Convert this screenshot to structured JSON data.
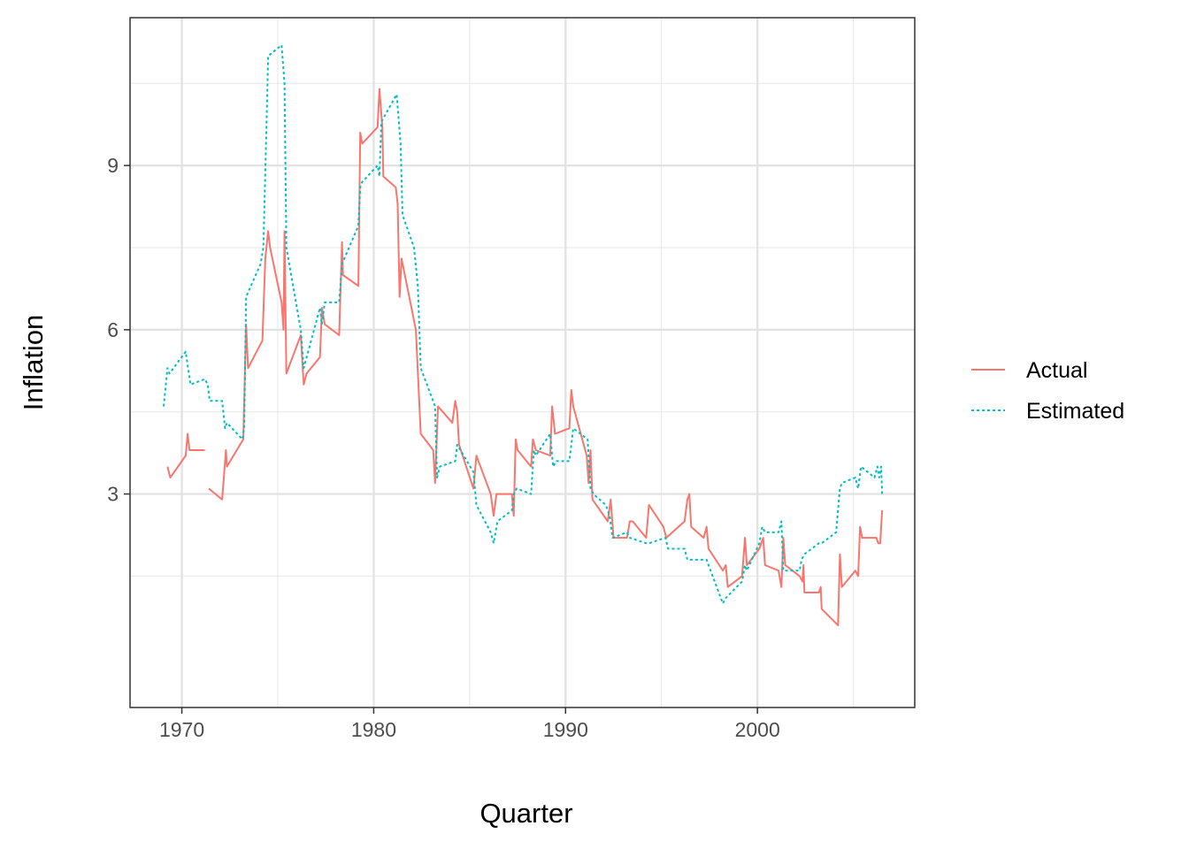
{
  "chart_data": {
    "type": "line",
    "title": "",
    "xlabel": "Quarter",
    "ylabel": "Inflation",
    "xlim": [
      1967.3,
      2008.2
    ],
    "ylim": [
      -0.9,
      11.7
    ],
    "x_ticks": [
      1970,
      1980,
      1990,
      2000
    ],
    "y_ticks": [
      3,
      6,
      9
    ],
    "x_minor": [
      1975,
      1985,
      1995,
      2005
    ],
    "y_minor": [
      1.5,
      4.5,
      7.5,
      10.5
    ],
    "grid": true,
    "legend_position": "right",
    "series": [
      {
        "name": "Actual",
        "color": "#F8766D",
        "dash": "solid",
        "segments": [
          [
            [
              1969.25,
              3.5
            ],
            [
              1969.4,
              3.3
            ],
            [
              1970.2,
              3.7
            ],
            [
              1970.3,
              4.1
            ],
            [
              1970.4,
              3.8
            ],
            [
              1971.2,
              3.8
            ]
          ],
          [
            [
              1971.4,
              3.1
            ],
            [
              1972.1,
              2.9
            ],
            [
              1972.3,
              3.8
            ],
            [
              1972.35,
              3.5
            ],
            [
              1973.2,
              4.0
            ],
            [
              1973.35,
              6.1
            ],
            [
              1973.45,
              5.3
            ],
            [
              1974.2,
              5.8
            ],
            [
              1974.35,
              7.3
            ],
            [
              1974.5,
              7.8
            ],
            [
              1974.6,
              7.5
            ],
            [
              1975.2,
              6.5
            ],
            [
              1975.3,
              6.0
            ],
            [
              1975.35,
              7.8
            ],
            [
              1975.45,
              5.2
            ],
            [
              1976.2,
              5.9
            ],
            [
              1976.35,
              5.0
            ],
            [
              1976.5,
              5.2
            ],
            [
              1977.2,
              5.5
            ],
            [
              1977.3,
              6.4
            ],
            [
              1977.45,
              6.1
            ],
            [
              1978.2,
              5.9
            ],
            [
              1978.35,
              7.6
            ],
            [
              1978.4,
              7.0
            ],
            [
              1979.2,
              6.8
            ],
            [
              1979.3,
              9.6
            ],
            [
              1979.4,
              9.4
            ],
            [
              1980.2,
              9.7
            ],
            [
              1980.3,
              10.4
            ],
            [
              1980.45,
              9.7
            ],
            [
              1980.5,
              8.8
            ],
            [
              1981.15,
              8.6
            ],
            [
              1981.25,
              8.3
            ],
            [
              1981.35,
              6.6
            ],
            [
              1981.45,
              7.3
            ],
            [
              1982.2,
              6.0
            ],
            [
              1982.45,
              4.1
            ],
            [
              1983.1,
              3.8
            ],
            [
              1983.2,
              3.2
            ],
            [
              1983.35,
              4.6
            ],
            [
              1984.1,
              4.3
            ],
            [
              1984.25,
              4.7
            ],
            [
              1984.35,
              4.5
            ],
            [
              1984.45,
              3.9
            ],
            [
              1985.2,
              3.1
            ],
            [
              1985.35,
              3.7
            ],
            [
              1986.1,
              3.0
            ],
            [
              1986.25,
              2.6
            ],
            [
              1986.4,
              3.0
            ],
            [
              1987.2,
              3.0
            ],
            [
              1987.3,
              2.6
            ],
            [
              1987.4,
              4.0
            ],
            [
              1987.5,
              3.8
            ],
            [
              1988.2,
              3.5
            ],
            [
              1988.3,
              4.0
            ],
            [
              1988.45,
              3.8
            ],
            [
              1989.2,
              3.7
            ],
            [
              1989.3,
              4.6
            ],
            [
              1989.45,
              4.1
            ],
            [
              1990.2,
              4.2
            ],
            [
              1990.3,
              4.9
            ],
            [
              1990.4,
              4.6
            ],
            [
              1991.1,
              3.7
            ],
            [
              1991.2,
              3.2
            ],
            [
              1991.3,
              3.8
            ],
            [
              1991.4,
              2.9
            ],
            [
              1992.2,
              2.5
            ],
            [
              1992.35,
              2.9
            ],
            [
              1992.5,
              2.2
            ],
            [
              1993.2,
              2.2
            ],
            [
              1993.35,
              2.5
            ],
            [
              1993.5,
              2.5
            ],
            [
              1994.2,
              2.2
            ],
            [
              1994.35,
              2.8
            ],
            [
              1995.1,
              2.4
            ],
            [
              1995.25,
              2.2
            ],
            [
              1996.2,
              2.5
            ],
            [
              1996.35,
              2.9
            ],
            [
              1996.45,
              3.0
            ],
            [
              1996.55,
              2.4
            ],
            [
              1997.2,
              2.2
            ],
            [
              1997.35,
              2.4
            ],
            [
              1997.45,
              2.0
            ],
            [
              1998.2,
              1.6
            ],
            [
              1998.35,
              1.7
            ],
            [
              1998.45,
              1.3
            ],
            [
              1999.2,
              1.5
            ],
            [
              1999.35,
              2.2
            ],
            [
              1999.45,
              1.7
            ],
            [
              2000.1,
              2.0
            ],
            [
              2000.3,
              2.2
            ],
            [
              2000.4,
              1.7
            ],
            [
              2001.1,
              1.6
            ],
            [
              2001.25,
              1.3
            ],
            [
              2001.35,
              2.2
            ],
            [
              2001.45,
              1.7
            ],
            [
              2002.2,
              1.5
            ],
            [
              2002.35,
              1.4
            ],
            [
              2002.4,
              1.7
            ],
            [
              2002.45,
              1.2
            ],
            [
              2003.2,
              1.2
            ],
            [
              2003.3,
              1.3
            ],
            [
              2003.35,
              0.9
            ],
            [
              2004.2,
              0.6
            ],
            [
              2004.3,
              1.9
            ],
            [
              2004.4,
              1.3
            ],
            [
              2005.1,
              1.6
            ],
            [
              2005.25,
              1.5
            ],
            [
              2005.35,
              2.4
            ],
            [
              2005.45,
              2.2
            ],
            [
              2006.2,
              2.2
            ],
            [
              2006.3,
              2.1
            ],
            [
              2006.4,
              2.1
            ],
            [
              2006.5,
              2.7
            ]
          ]
        ]
      },
      {
        "name": "Estimated",
        "color": "#00BFC4",
        "dash": "dotted",
        "segments": [
          [
            [
              1969.05,
              4.6
            ],
            [
              1969.25,
              5.3
            ],
            [
              1969.35,
              5.2
            ],
            [
              1970.2,
              5.6
            ],
            [
              1970.45,
              5.0
            ],
            [
              1971.2,
              5.1
            ],
            [
              1971.35,
              5.0
            ],
            [
              1971.45,
              4.7
            ],
            [
              1972.1,
              4.7
            ],
            [
              1972.25,
              4.2
            ],
            [
              1972.35,
              4.3
            ],
            [
              1973.15,
              4.0
            ],
            [
              1973.25,
              4.2
            ],
            [
              1973.35,
              6.6
            ],
            [
              1974.1,
              7.2
            ],
            [
              1974.25,
              7.5
            ],
            [
              1974.45,
              10.3
            ],
            [
              1974.5,
              11.0
            ],
            [
              1975.2,
              11.2
            ],
            [
              1975.35,
              10.5
            ],
            [
              1975.45,
              7.5
            ],
            [
              1976.2,
              6.0
            ],
            [
              1976.35,
              5.3
            ],
            [
              1977.2,
              6.4
            ],
            [
              1977.3,
              6.1
            ],
            [
              1977.45,
              6.5
            ],
            [
              1978.2,
              6.5
            ],
            [
              1978.35,
              7.2
            ],
            [
              1979.2,
              7.9
            ],
            [
              1979.3,
              8.6
            ],
            [
              1979.4,
              8.7
            ],
            [
              1980.2,
              9.0
            ],
            [
              1980.3,
              8.8
            ],
            [
              1980.4,
              9.8
            ],
            [
              1981.2,
              10.3
            ],
            [
              1981.4,
              9.4
            ],
            [
              1981.5,
              8.1
            ],
            [
              1982.1,
              7.5
            ],
            [
              1982.3,
              6.8
            ],
            [
              1982.45,
              5.3
            ],
            [
              1983.2,
              4.6
            ],
            [
              1983.3,
              3.3
            ],
            [
              1983.45,
              3.5
            ],
            [
              1984.25,
              3.6
            ],
            [
              1984.35,
              3.9
            ],
            [
              1985.2,
              3.4
            ],
            [
              1985.35,
              2.8
            ],
            [
              1986.1,
              2.3
            ],
            [
              1986.25,
              2.1
            ],
            [
              1986.45,
              2.5
            ],
            [
              1987.2,
              2.7
            ],
            [
              1987.3,
              3.0
            ],
            [
              1987.45,
              3.1
            ],
            [
              1988.2,
              3.0
            ],
            [
              1988.35,
              3.8
            ],
            [
              1988.45,
              3.7
            ],
            [
              1989.2,
              4.1
            ],
            [
              1989.35,
              3.5
            ],
            [
              1989.5,
              3.6
            ],
            [
              1990.2,
              3.6
            ],
            [
              1990.4,
              4.2
            ],
            [
              1991.15,
              4.0
            ],
            [
              1991.3,
              3.1
            ],
            [
              1991.45,
              3.0
            ],
            [
              1992.1,
              2.8
            ],
            [
              1992.3,
              2.6
            ],
            [
              1992.45,
              2.2
            ],
            [
              1993.2,
              2.3
            ],
            [
              1993.35,
              2.2
            ],
            [
              1994.2,
              2.1
            ],
            [
              1994.35,
              2.1
            ],
            [
              1995.2,
              2.2
            ],
            [
              1995.35,
              2.0
            ],
            [
              1996.2,
              2.0
            ],
            [
              1996.35,
              1.8
            ],
            [
              1997.2,
              1.8
            ],
            [
              1997.35,
              1.8
            ],
            [
              1997.45,
              1.7
            ],
            [
              1998.2,
              1.0
            ],
            [
              1998.35,
              1.1
            ],
            [
              1999.2,
              1.4
            ],
            [
              1999.35,
              1.7
            ],
            [
              1999.45,
              1.6
            ],
            [
              2000.1,
              2.1
            ],
            [
              2000.25,
              2.4
            ],
            [
              2000.4,
              2.3
            ],
            [
              2001.1,
              2.3
            ],
            [
              2001.25,
              2.5
            ],
            [
              2001.35,
              1.6
            ],
            [
              2002.2,
              1.6
            ],
            [
              2002.3,
              1.8
            ],
            [
              2002.45,
              1.9
            ],
            [
              2003.2,
              2.1
            ],
            [
              2003.35,
              2.1
            ],
            [
              2004.1,
              2.3
            ],
            [
              2004.3,
              3.1
            ],
            [
              2004.4,
              3.2
            ],
            [
              2005.1,
              3.3
            ],
            [
              2005.25,
              3.1
            ],
            [
              2005.4,
              3.5
            ],
            [
              2006.1,
              3.3
            ],
            [
              2006.25,
              3.5
            ],
            [
              2006.35,
              3.3
            ],
            [
              2006.45,
              3.5
            ],
            [
              2006.5,
              3.0
            ]
          ]
        ]
      }
    ]
  }
}
